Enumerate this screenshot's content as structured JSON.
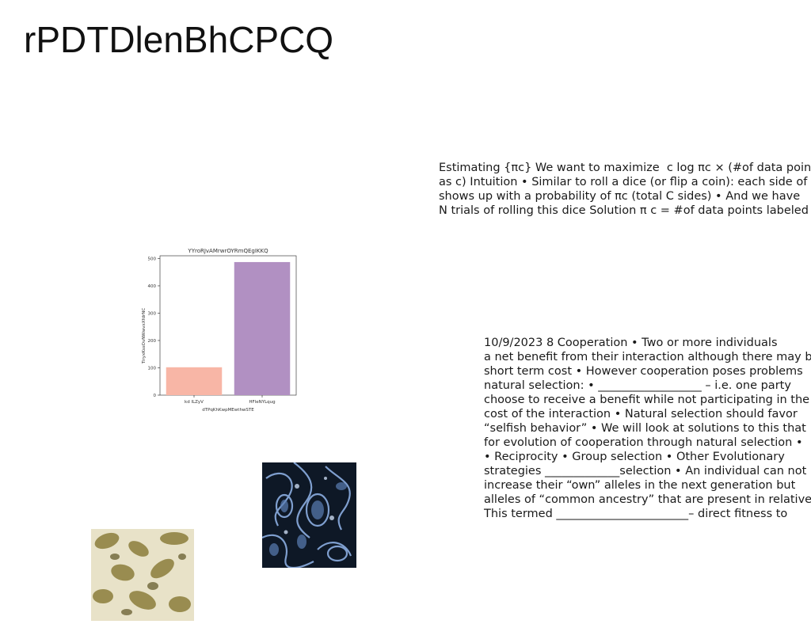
{
  "page": {
    "title": "rPDTDlenBhCPCQ"
  },
  "block1": {
    "lines": [
      "Estimating {πc} We want to maximize ￼ c log πc × (#of data points",
      "as c) Intuition • Similar to roll a dice (or flip a coin): each side of the",
      "shows up with a probability of πc (total C sides) • And we have",
      "N trials of rolling this dice Solution π￼ c = #of data points labeled"
    ]
  },
  "block2": {
    "lines": [
      "10/9/2023 8 Cooperation • Two or more individuals",
      "a net benefit from their interaction although there may be",
      "short term cost • However cooperation poses problems",
      "natural selection: • __________________ – i.e. one party",
      "choose to receive a benefit while not participating in the",
      "cost of the interaction • Natural selection should favor",
      "“selfish behavior” • We will look at solutions to this that",
      "for evolution of cooperation through natural selection •",
      "• Reciprocity • Group selection • Other Evolutionary",
      "strategies _____________selection • An individual can not",
      "increase their “own” alleles in the next generation but",
      "alleles of “common ancestry” that are present in relatives",
      "This termed _______________________– direct fitness to"
    ]
  },
  "chart_data": {
    "type": "bar",
    "title": "YYroRJvAMrwrOYRmQEgIKKQ",
    "xlabel": "dTPqKhKwpMEwthwSTE",
    "ylabel": "TiryxKssOvNWwvxXfdrNC",
    "categories": [
      "kd ILZyV",
      "HFleNYLqug"
    ],
    "values": [
      102,
      487
    ],
    "colors": [
      "#f8b6a6",
      "#b190c2"
    ],
    "ylim": [
      0,
      510
    ],
    "yticks": [
      0,
      100,
      200,
      300,
      400,
      500
    ],
    "grid": false
  },
  "images": {
    "blue_pattern": "blue-paisley-fabric-image",
    "olive_pattern": "olive-floral-fabric-image"
  }
}
